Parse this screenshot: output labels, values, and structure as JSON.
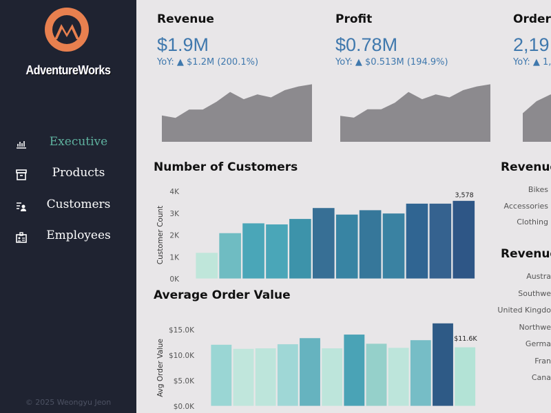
{
  "sidebar": {
    "brand": "AdventureWorks",
    "items": [
      {
        "label": "Executive",
        "icon": "bar-chart-icon",
        "active": true
      },
      {
        "label": "Products",
        "icon": "archive-box-icon",
        "active": false
      },
      {
        "label": "Customers",
        "icon": "customer-list-icon",
        "active": false
      },
      {
        "label": "Employees",
        "icon": "id-badge-icon",
        "active": false
      }
    ],
    "footer": "© 2025 Weongyu Jeon"
  },
  "colors": {
    "accent": "#3f78ad",
    "logo": "#e8804f",
    "sidebar": "#1f2331",
    "active": "#5fb3a0",
    "spark": "#8c8a8e"
  },
  "kpis": [
    {
      "title": "Revenue",
      "value": "$1.9M",
      "yoy": "YoY: ▲ $1.2M (200.1%)",
      "trend": [
        120,
        109,
        147,
        147,
        182,
        227,
        194,
        216,
        202,
        235,
        252,
        262
      ]
    },
    {
      "title": "Profit",
      "value": "$0.78M",
      "yoy": "YoY: ▲ $0.513M (194.9%)",
      "trend": [
        118,
        110,
        148,
        148,
        178,
        227,
        194,
        216,
        202,
        235,
        252,
        262
      ]
    },
    {
      "title": "Orders",
      "value": "2,19",
      "yoy": "YoY: ▲ 1,",
      "trend": [
        130,
        185,
        215,
        225,
        225
      ]
    }
  ],
  "sections": {
    "customers": "Number of Customers",
    "aov": "Average Order Value",
    "rev_cat": "Revenue",
    "rev_region": "Revenue"
  },
  "categories": [
    "Bikes",
    "Accessories",
    "Clothing"
  ],
  "regions": [
    "Austra",
    "Southwe",
    "United Kingdo",
    "Northwe",
    "Germa",
    "Fran",
    "Cana"
  ],
  "chart_data": [
    {
      "type": "bar",
      "title": "Number of Customers",
      "ylabel": "Customer Count",
      "ylim": [
        0,
        4000
      ],
      "yticks": [
        "0K",
        "1K",
        "2K",
        "3K",
        "4K"
      ],
      "values": [
        1200,
        2100,
        2550,
        2500,
        2750,
        3250,
        2950,
        3150,
        3000,
        3450,
        3450,
        3578
      ],
      "data_label": "3,578",
      "colors": [
        "#bfe6da",
        "#6fbcc2",
        "#4aa6b8",
        "#4aa6b8",
        "#3d93aa",
        "#376f95",
        "#3884a3",
        "#36779a",
        "#3a82a2",
        "#306592",
        "#35628f",
        "#2e5686"
      ]
    },
    {
      "type": "bar",
      "title": "Average Order Value",
      "ylabel": "Avg Order Value",
      "ylim": [
        0,
        15000
      ],
      "yticks": [
        "$0.0K",
        "$5.0K",
        "$10.0K",
        "$15.0K"
      ],
      "values": [
        12100,
        11300,
        11400,
        12200,
        13400,
        11400,
        14100,
        12300,
        11500,
        13000,
        16300,
        11600
      ],
      "data_label": "$11.6K",
      "colors": [
        "#9ad6d4",
        "#c0e6dc",
        "#bde5db",
        "#9fd7d6",
        "#66b3bf",
        "#bde5db",
        "#4aa3b6",
        "#95d0ca",
        "#bde5db",
        "#76bdc6",
        "#2e5a86",
        "#b3e3d6"
      ]
    }
  ]
}
